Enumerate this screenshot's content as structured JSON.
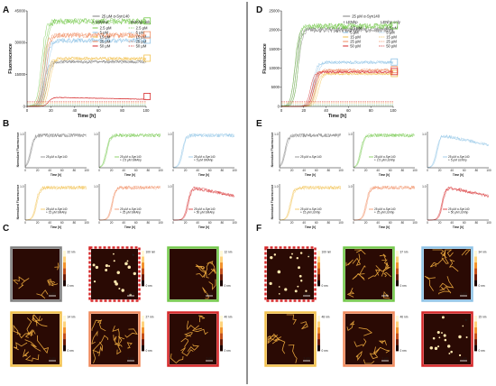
{
  "figure": {
    "panels": {
      "A": "A",
      "B": "B",
      "C": "C",
      "D": "D",
      "E": "E",
      "F": "F"
    },
    "colors": {
      "gray": "#7f7f7f",
      "green": "#74c84b",
      "blue": "#8fc3e6",
      "yellow": "#f2c14e",
      "orange": "#f08a5d",
      "red": "#d62728",
      "dark_red": "#b3181c",
      "afm_bg": "#2a0a04"
    },
    "common": {
      "ylabel": "Fluorescence",
      "ylabel_norm": "Normalized Fluorescence",
      "xlabel": "Time [h]",
      "scale_nm": "nm",
      "scale_bar": "1 µm"
    }
  },
  "chart_data": [
    {
      "id": "A",
      "type": "line",
      "ylabel": "Fluorescence",
      "xlabel": "Time [h]",
      "xlim": [
        0,
        100
      ],
      "ylim": [
        0,
        45000
      ],
      "x_ticks": [
        0,
        20,
        40,
        60,
        80,
        100
      ],
      "y_ticks": [
        0,
        15000,
        30000,
        45000
      ],
      "legend": {
        "top": "25 µM α-Syn140",
        "col1_title": "+ SMAhp",
        "col2_title": "SMAhp only",
        "col1": [
          "2.5 µM",
          "5 µM",
          "15 µM",
          "25 µM",
          "50 µM"
        ],
        "col2": [
          "2.5 µM",
          "5 µM",
          "15 µM",
          "25 µM",
          "50 µM"
        ]
      },
      "series": [
        {
          "name": "25 µM α-Syn140",
          "color": "#7f7f7f",
          "lag": 14,
          "plateau": 21000
        },
        {
          "name": "2.5 µM",
          "color": "#74c84b",
          "lag": 12,
          "plateau": 40000
        },
        {
          "name": "5 µM",
          "color": "#8fc3e6",
          "lag": 14,
          "plateau": 31000
        },
        {
          "name": "15 µM",
          "color": "#f2c14e",
          "lag": 16,
          "plateau": 22500
        },
        {
          "name": "25 µM",
          "color": "#f08a5d",
          "lag": 13,
          "plateau": 33500
        },
        {
          "name": "50 µM",
          "color": "#d62728",
          "lag": 18,
          "plateau": 4500
        }
      ],
      "markers": [
        "G",
        "B",
        "O",
        "Y",
        "R"
      ]
    },
    {
      "id": "D",
      "type": "line",
      "ylabel": "Fluorescence",
      "xlabel": "Time [h]",
      "xlim": [
        0,
        100
      ],
      "ylim": [
        0,
        25000
      ],
      "x_ticks": [
        0,
        20,
        40,
        60,
        80,
        100
      ],
      "y_ticks": [
        0,
        5000,
        10000,
        15000,
        20000,
        25000
      ],
      "legend": {
        "top": "25 µM α-Syn140",
        "col1_title": "+ LENhp",
        "col2_title": "LENhp only",
        "col1": [
          "2.5 µM",
          "5 µM",
          "15 µM",
          "25 µM",
          "50 µM"
        ],
        "col2": [
          "2.5 µM",
          "5 µM",
          "15 µM",
          "25 µM",
          "50 µM"
        ]
      },
      "series": [
        {
          "name": "25 µM α-Syn140",
          "color": "#7f7f7f",
          "lag": 12,
          "plateau": 20000
        },
        {
          "name": "2.5 µM",
          "color": "#74c84b",
          "lag": 12,
          "plateau": 21000
        },
        {
          "name": "5 µM",
          "color": "#8fc3e6",
          "lag": 28,
          "plateau": 11500
        },
        {
          "name": "15 µM",
          "color": "#f2c14e",
          "lag": 30,
          "plateau": 8500
        },
        {
          "name": "25 µM",
          "color": "#f08a5d",
          "lag": 28,
          "plateau": 9500
        },
        {
          "name": "50 µM",
          "color": "#d62728",
          "lag": 26,
          "plateau": 9000
        }
      ]
    }
  ],
  "small_panels": {
    "B": [
      {
        "label": "25 µM α-Syn140",
        "color": "#7f7f7f",
        "ymax": "1.0"
      },
      {
        "label": "25 µM α-Syn140 + 2.5 µM SMAhp",
        "color": "#74c84b",
        "ymax": "1.0"
      },
      {
        "label": "25 µM α-Syn140 + 5 µM SMAhp",
        "color": "#8fc3e6",
        "ymax": "1.0"
      },
      {
        "label": "25 µM α-Syn140 + 15 µM SMAhp",
        "color": "#f2c14e",
        "ymax": "1.0"
      },
      {
        "label": "25 µM α-Syn140 + 25 µM SMAhp",
        "color": "#f08a5d",
        "ymax": "1.0"
      },
      {
        "label": "25 µM α-Syn140 + 50 µM SMAhp",
        "color": "#d62728",
        "ymax": "1.0"
      }
    ],
    "E": [
      {
        "label": "25 µM α-Syn140",
        "color": "#7f7f7f",
        "ymax": "1.0"
      },
      {
        "label": "25 µM α-Syn140 + 2.5 µM LENhp",
        "color": "#74c84b",
        "ymax": "1.0"
      },
      {
        "label": "25 µM α-Syn140 + 5 µM LENhp",
        "color": "#8fc3e6",
        "ymax": "1.0"
      },
      {
        "label": "25 µM α-Syn140 + 15 µM LENhp",
        "color": "#f2c14e",
        "ymax": "1.0"
      },
      {
        "label": "25 µM α-Syn140 + 25 µM LENhp",
        "color": "#f08a5d",
        "ymax": "1.0"
      },
      {
        "label": "25 µM α-Syn140 + 50 µM LENhp",
        "color": "#d62728",
        "ymax": "1.0"
      }
    ]
  },
  "afm": {
    "C": [
      {
        "border": "#7f7f7f",
        "scale_top": "22 nm",
        "scale_bottom": "0 nm"
      },
      {
        "border": "#d62728",
        "scale_top": "100 nm",
        "scale_bottom": "0 nm",
        "dashed": true,
        "star": true
      },
      {
        "border": "#74c84b",
        "scale_top": "12 nm",
        "scale_bottom": "0 nm"
      },
      {
        "border": "#f2c14e",
        "scale_top": "14 nm",
        "scale_bottom": "0 nm"
      },
      {
        "border": "#f08a5d",
        "scale_top": "27 nm",
        "scale_bottom": "0 nm"
      },
      {
        "border": "#d62728",
        "scale_top": "40 nm",
        "scale_bottom": "0 nm"
      }
    ],
    "F": [
      {
        "border": "#d62728",
        "scale_top": "100 nm",
        "scale_bottom": "0 nm",
        "dashed": true,
        "star": true
      },
      {
        "border": "#74c84b",
        "scale_top": "37 nm",
        "scale_bottom": "0 nm"
      },
      {
        "border": "#8fc3e6",
        "scale_top": "34 nm",
        "scale_bottom": "0 nm"
      },
      {
        "border": "#f2c14e",
        "scale_top": "48 nm",
        "scale_bottom": "0 nm"
      },
      {
        "border": "#f08a5d",
        "scale_top": "46 nm",
        "scale_bottom": "0 nm"
      },
      {
        "border": "#d62728",
        "scale_top": "15 nm",
        "scale_bottom": "0 nm",
        "star": true
      }
    ]
  }
}
